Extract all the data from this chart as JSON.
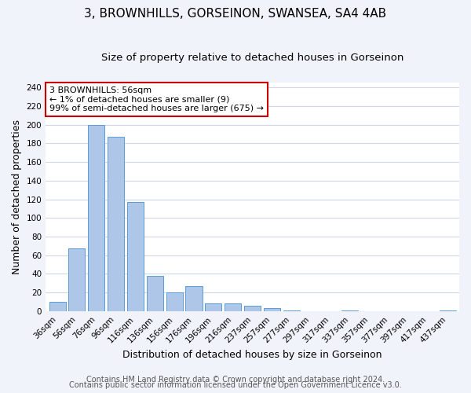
{
  "title": "3, BROWNHILLS, GORSEINON, SWANSEA, SA4 4AB",
  "subtitle": "Size of property relative to detached houses in Gorseinon",
  "xlabel": "Distribution of detached houses by size in Gorseinon",
  "ylabel": "Number of detached properties",
  "bar_labels": [
    "36sqm",
    "56sqm",
    "76sqm",
    "96sqm",
    "116sqm",
    "136sqm",
    "156sqm",
    "176sqm",
    "196sqm",
    "216sqm",
    "237sqm",
    "257sqm",
    "277sqm",
    "297sqm",
    "317sqm",
    "337sqm",
    "357sqm",
    "377sqm",
    "397sqm",
    "417sqm",
    "437sqm"
  ],
  "bar_values": [
    10,
    67,
    200,
    187,
    117,
    38,
    20,
    27,
    8,
    8,
    6,
    3,
    1,
    0,
    0,
    1,
    0,
    0,
    0,
    0,
    1
  ],
  "bar_color": "#aec6e8",
  "bar_edge_color": "#5b9bd5",
  "ylim": [
    0,
    245
  ],
  "yticks": [
    0,
    20,
    40,
    60,
    80,
    100,
    120,
    140,
    160,
    180,
    200,
    220,
    240
  ],
  "annotation_title": "3 BROWNHILLS: 56sqm",
  "annotation_line1": "← 1% of detached houses are smaller (9)",
  "annotation_line2": "99% of semi-detached houses are larger (675) →",
  "annotation_box_color": "#ffffff",
  "annotation_border_color": "#cc0000",
  "footer_line1": "Contains HM Land Registry data © Crown copyright and database right 2024.",
  "footer_line2": "Contains public sector information licensed under the Open Government Licence v3.0.",
  "background_color": "#f0f4fa",
  "plot_bg_color": "#ffffff",
  "grid_color": "#d0d8e8",
  "title_fontsize": 11,
  "subtitle_fontsize": 9.5,
  "axis_label_fontsize": 9,
  "tick_fontsize": 7.5,
  "annotation_fontsize": 8,
  "footer_fontsize": 7
}
